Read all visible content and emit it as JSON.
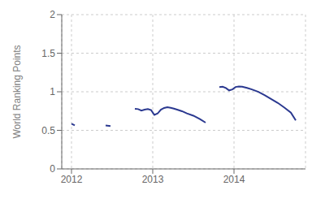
{
  "chart_data": {
    "type": "line",
    "ylabel": "World Ranking Points",
    "color": "#2b3990",
    "grid": true,
    "xlim": [
      2011.88,
      2014.88
    ],
    "xticks": [
      2012,
      2013,
      2014
    ],
    "ylim": [
      0,
      2
    ],
    "yticks": [
      0,
      0.5,
      1,
      1.5,
      2
    ],
    "series": [
      {
        "x": [
          2012.0,
          2012.04
        ],
        "values": [
          0.585,
          0.565
        ]
      },
      {
        "x": [
          2012.42,
          2012.48
        ],
        "values": [
          0.562,
          0.555
        ]
      },
      {
        "x": [
          2012.78,
          2012.82,
          2012.86,
          2012.9,
          2012.94,
          2012.98,
          2013.02,
          2013.06,
          2013.1,
          2013.14,
          2013.18,
          2013.22,
          2013.26,
          2013.3,
          2013.36,
          2013.42,
          2013.5,
          2013.58,
          2013.65
        ],
        "values": [
          0.78,
          0.775,
          0.755,
          0.768,
          0.775,
          0.762,
          0.7,
          0.718,
          0.768,
          0.79,
          0.8,
          0.792,
          0.782,
          0.768,
          0.748,
          0.72,
          0.69,
          0.645,
          0.6
        ]
      },
      {
        "x": [
          2013.82,
          2013.86,
          2013.9,
          2013.94,
          2013.98,
          2014.02,
          2014.06,
          2014.1,
          2014.16,
          2014.22,
          2014.3,
          2014.38,
          2014.46,
          2014.54,
          2014.62,
          2014.7,
          2014.76
        ],
        "values": [
          1.06,
          1.065,
          1.048,
          1.018,
          1.03,
          1.062,
          1.068,
          1.065,
          1.05,
          1.03,
          0.998,
          0.955,
          0.905,
          0.855,
          0.795,
          0.73,
          0.628
        ]
      }
    ]
  }
}
